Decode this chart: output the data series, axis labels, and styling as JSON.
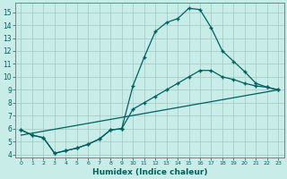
{
  "xlabel": "Humidex (Indice chaleur)",
  "bg_color": "#c8ece8",
  "grid_color": "#a0c8c4",
  "line_color": "#006060",
  "spine_color": "#808080",
  "xlim": [
    -0.5,
    23.5
  ],
  "ylim": [
    3.8,
    15.7
  ],
  "yticks": [
    4,
    5,
    6,
    7,
    8,
    9,
    10,
    11,
    12,
    13,
    14,
    15
  ],
  "xticks": [
    0,
    1,
    2,
    3,
    4,
    5,
    6,
    7,
    8,
    9,
    10,
    11,
    12,
    13,
    14,
    15,
    16,
    17,
    18,
    19,
    20,
    21,
    22,
    23
  ],
  "line1_x": [
    0,
    1,
    2,
    3,
    4,
    5,
    6,
    7,
    8,
    9,
    10,
    11,
    12,
    13,
    14,
    15,
    16,
    17,
    18,
    19,
    20,
    21,
    22,
    23
  ],
  "line1_y": [
    5.9,
    5.5,
    5.3,
    4.1,
    4.3,
    4.5,
    4.8,
    5.2,
    5.9,
    6.0,
    9.3,
    11.5,
    13.5,
    14.2,
    14.5,
    15.3,
    15.2,
    13.8,
    12.0,
    11.2,
    10.4,
    9.5,
    9.2,
    9.0
  ],
  "line2_x": [
    0,
    1,
    2,
    3,
    4,
    5,
    6,
    7,
    8,
    9,
    10,
    11,
    12,
    13,
    14,
    15,
    16,
    17,
    18,
    19,
    20,
    21,
    22,
    23
  ],
  "line2_y": [
    5.9,
    5.5,
    5.3,
    4.1,
    4.3,
    4.5,
    4.8,
    5.2,
    5.9,
    6.0,
    7.5,
    8.0,
    8.5,
    9.0,
    9.5,
    10.0,
    10.5,
    10.5,
    10.0,
    9.8,
    9.5,
    9.3,
    9.2,
    9.0
  ],
  "line3_x": [
    0,
    23
  ],
  "line3_y": [
    5.5,
    9.0
  ]
}
